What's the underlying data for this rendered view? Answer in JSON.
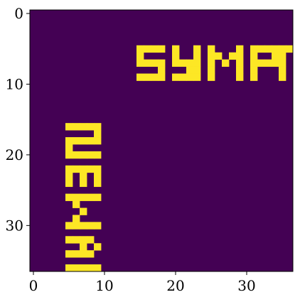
{
  "chart_data": {
    "type": "heatmap",
    "title": "",
    "xlabel": "",
    "ylabel": "",
    "shape": [
      37,
      37
    ],
    "xlim": [
      -0.5,
      36.5
    ],
    "ylim": [
      36.5,
      -0.5
    ],
    "x_ticks": [
      0,
      10,
      20,
      30
    ],
    "y_ticks": [
      0,
      10,
      20,
      30
    ],
    "x_tick_labels": [
      "0",
      "10",
      "20",
      "30"
    ],
    "y_tick_labels": [
      "0",
      "10",
      "20",
      "30"
    ],
    "colormap": "viridis",
    "background_value": 0,
    "foreground_value": 1,
    "background_color": "#440154",
    "foreground_color": "#fde725",
    "horizontal_text": {
      "text": "SYMPT",
      "row_range": [
        5,
        9
      ],
      "col_range": [
        15,
        36
      ]
    },
    "vertical_text": {
      "text": "TAMEZ",
      "note_rows_cols": "rows 16-36, cols 5-9, rotated 90 degrees"
    },
    "cells": [
      [
        5,
        15
      ],
      [
        5,
        16
      ],
      [
        5,
        17
      ],
      [
        5,
        18
      ],
      [
        5,
        20
      ],
      [
        5,
        23
      ],
      [
        5,
        25
      ],
      [
        5,
        29
      ],
      [
        5,
        31
      ],
      [
        5,
        32
      ],
      [
        5,
        33
      ],
      [
        5,
        35
      ],
      [
        5,
        36
      ],
      [
        5,
        34
      ],
      [
        6,
        15
      ],
      [
        6,
        20
      ],
      [
        6,
        23
      ],
      [
        6,
        25
      ],
      [
        6,
        26
      ],
      [
        6,
        28
      ],
      [
        6,
        29
      ],
      [
        6,
        31
      ],
      [
        6,
        34
      ],
      [
        6,
        35
      ],
      [
        7,
        15
      ],
      [
        7,
        16
      ],
      [
        7,
        17
      ],
      [
        7,
        18
      ],
      [
        7,
        20
      ],
      [
        7,
        21
      ],
      [
        7,
        22
      ],
      [
        7,
        23
      ],
      [
        7,
        25
      ],
      [
        7,
        27
      ],
      [
        7,
        29
      ],
      [
        7,
        31
      ],
      [
        7,
        32
      ],
      [
        7,
        33
      ],
      [
        7,
        34
      ],
      [
        7,
        35
      ],
      [
        8,
        18
      ],
      [
        8,
        22
      ],
      [
        8,
        23
      ],
      [
        8,
        25
      ],
      [
        8,
        29
      ],
      [
        8,
        31
      ],
      [
        8,
        35
      ],
      [
        9,
        15
      ],
      [
        9,
        16
      ],
      [
        9,
        17
      ],
      [
        9,
        18
      ],
      [
        9,
        20
      ],
      [
        9,
        21
      ],
      [
        9,
        22
      ],
      [
        9,
        23
      ],
      [
        9,
        25
      ],
      [
        9,
        29
      ],
      [
        9,
        31
      ],
      [
        9,
        35
      ],
      [
        16,
        5
      ],
      [
        16,
        6
      ],
      [
        16,
        7
      ],
      [
        16,
        8
      ],
      [
        16,
        9
      ],
      [
        17,
        9
      ],
      [
        18,
        5
      ],
      [
        18,
        6
      ],
      [
        18,
        7
      ],
      [
        18,
        8
      ],
      [
        18,
        9
      ],
      [
        19,
        5
      ],
      [
        20,
        5
      ],
      [
        20,
        6
      ],
      [
        20,
        7
      ],
      [
        20,
        8
      ],
      [
        20,
        9
      ],
      [
        22,
        5
      ],
      [
        22,
        6
      ],
      [
        22,
        7
      ],
      [
        22,
        8
      ],
      [
        22,
        9
      ],
      [
        23,
        5
      ],
      [
        23,
        7
      ],
      [
        23,
        9
      ],
      [
        24,
        5
      ],
      [
        24,
        7
      ],
      [
        24,
        9
      ],
      [
        26,
        5
      ],
      [
        26,
        6
      ],
      [
        26,
        7
      ],
      [
        26,
        8
      ],
      [
        26,
        9
      ],
      [
        27,
        6
      ],
      [
        28,
        7
      ],
      [
        29,
        6
      ],
      [
        30,
        5
      ],
      [
        30,
        6
      ],
      [
        30,
        7
      ],
      [
        30,
        8
      ],
      [
        30,
        9
      ],
      [
        32,
        5
      ],
      [
        32,
        6
      ],
      [
        32,
        7
      ],
      [
        32,
        8
      ],
      [
        33,
        7
      ],
      [
        33,
        9
      ],
      [
        34,
        5
      ],
      [
        34,
        6
      ],
      [
        34,
        7
      ],
      [
        34,
        8
      ],
      [
        36,
        9
      ],
      [
        36,
        5
      ],
      [
        36,
        6
      ],
      [
        36,
        7
      ],
      [
        36,
        8
      ]
    ]
  }
}
